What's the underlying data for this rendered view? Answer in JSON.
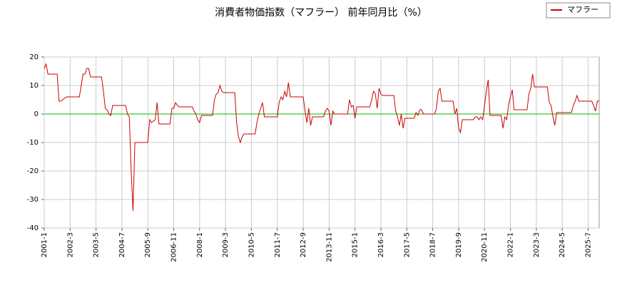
{
  "chart_data": {
    "type": "line",
    "title": "消費者物価指数（マフラー） 前年同月比（%）",
    "categories": [
      "2001-1",
      null,
      null,
      null,
      null,
      null,
      null,
      null,
      null,
      null,
      null,
      null,
      null,
      null,
      "2002-3",
      null,
      null,
      null,
      null,
      null,
      null,
      null,
      null,
      null,
      null,
      null,
      null,
      null,
      "2003-5",
      null,
      null,
      null,
      null,
      null,
      null,
      null,
      null,
      null,
      null,
      null,
      null,
      null,
      "2004-7",
      null,
      null,
      null,
      null,
      null,
      null,
      null,
      null,
      null,
      null,
      null,
      null,
      null,
      "2005-9",
      null,
      null,
      null,
      null,
      null,
      null,
      null,
      null,
      null,
      null,
      null,
      null,
      null,
      "2006-11",
      null,
      null,
      null,
      null,
      null,
      null,
      null,
      null,
      null,
      null,
      null,
      null,
      null,
      "2008-1",
      null,
      null,
      null,
      null,
      null,
      null,
      null,
      null,
      null,
      null,
      null,
      null,
      null,
      "2009-3",
      null,
      null,
      null,
      null,
      null,
      null,
      null,
      null,
      null,
      null,
      null,
      null,
      null,
      "2010-5",
      null,
      null,
      null,
      null,
      null,
      null,
      null,
      null,
      null,
      null,
      null,
      null,
      null,
      "2011-7",
      null,
      null,
      null,
      null,
      null,
      null,
      null,
      null,
      null,
      null,
      null,
      null,
      null,
      "2012-9",
      null,
      null,
      null,
      null,
      null,
      null,
      null,
      null,
      null,
      null,
      null,
      null,
      null,
      "2013-11",
      null,
      null,
      null,
      null,
      null,
      null,
      null,
      null,
      null,
      null,
      null,
      null,
      null,
      "2015-1",
      null,
      null,
      null,
      null,
      null,
      null,
      null,
      null,
      null,
      null,
      null,
      null,
      null,
      "2016-3",
      null,
      null,
      null,
      null,
      null,
      null,
      null,
      null,
      null,
      null,
      null,
      null,
      null,
      "2017-5",
      null,
      null,
      null,
      null,
      null,
      null,
      null,
      null,
      null,
      null,
      null,
      null,
      null,
      "2018-7",
      null,
      null,
      null,
      null,
      null,
      null,
      null,
      null,
      null,
      null,
      null,
      null,
      null,
      "2019-9",
      null,
      null,
      null,
      null,
      null,
      null,
      null,
      null,
      null,
      null,
      null,
      null,
      null,
      "2020-11",
      null,
      null,
      null,
      null,
      null,
      null,
      null,
      null,
      null,
      null,
      null,
      null,
      null,
      "2022-1",
      null,
      null,
      null,
      null,
      null,
      null,
      null,
      null,
      null,
      null,
      null,
      null,
      null,
      "2023-3",
      null,
      null,
      null,
      null,
      null,
      null,
      null,
      null,
      null,
      null,
      null,
      null,
      null,
      "2024-5",
      null,
      null,
      null,
      null,
      null,
      null,
      null,
      null,
      null,
      null,
      null,
      null,
      null,
      "2025-7",
      null,
      null,
      null,
      null,
      null,
      null
    ],
    "series": [
      {
        "name": "マフラー",
        "color": "#cc0000",
        "values": [
          16,
          17.5,
          14,
          14,
          14,
          14,
          14,
          14,
          4.5,
          4.5,
          5,
          5.5,
          6,
          6,
          6,
          6,
          6,
          6,
          6,
          6,
          10,
          14,
          14,
          16,
          16,
          13,
          13,
          13,
          13,
          13,
          13,
          13,
          8,
          2,
          1.5,
          0,
          -0.5,
          3,
          3,
          3,
          3,
          3,
          3,
          3,
          3,
          0,
          -1,
          -20,
          -34,
          -10,
          -10,
          -10,
          -10,
          -10,
          -10,
          -10,
          -10,
          -2,
          -3,
          -2.5,
          -2,
          4,
          -3.5,
          -3.5,
          -3.5,
          -3.5,
          -3.5,
          -3.5,
          -3.5,
          2,
          2,
          4,
          3,
          2.5,
          2.5,
          2.5,
          2.5,
          2.5,
          2.5,
          2.5,
          2.5,
          1,
          0,
          -2,
          -3,
          -0.5,
          -0.5,
          -0.5,
          -0.5,
          -0.5,
          -0.5,
          -0.5,
          5,
          7,
          7.5,
          10,
          8,
          7.5,
          7.5,
          7.5,
          7.5,
          7.5,
          7.5,
          7.5,
          -3,
          -8,
          -10,
          -8,
          -7,
          -7,
          -7,
          -7,
          -7,
          -7,
          -7,
          -3,
          0,
          2,
          4,
          -1,
          -1,
          -1,
          -1,
          -1,
          -1,
          -1,
          -1,
          4,
          6,
          5,
          8,
          6,
          11,
          6,
          6,
          6,
          6,
          6,
          6,
          6,
          6,
          1,
          -3,
          2,
          -4,
          -1,
          -1,
          -1,
          -1,
          -1,
          -1,
          -1,
          1,
          2,
          1,
          -4,
          1,
          0,
          0,
          0,
          0,
          0,
          0,
          0,
          0,
          5,
          2.5,
          3,
          -1.5,
          2.5,
          2.5,
          2.5,
          2.5,
          2.5,
          2.5,
          2.5,
          2.5,
          5,
          8,
          7,
          2,
          9,
          7,
          6.5,
          6.5,
          6.5,
          6.5,
          6.5,
          6.5,
          6.5,
          1,
          -1,
          -4,
          0,
          -5,
          -1.5,
          -1.5,
          -1.5,
          -1.5,
          -1.5,
          -1.5,
          0.5,
          -0.5,
          1.5,
          1.5,
          0,
          0,
          0,
          0,
          0,
          0,
          0,
          2,
          8,
          9,
          4.5,
          4.5,
          4.5,
          4.5,
          4.5,
          4.5,
          4.5,
          0,
          2,
          -5,
          -6.5,
          -2,
          -2,
          -2,
          -2,
          -2,
          -2,
          -2,
          -1,
          -1,
          -2,
          -1,
          -2,
          3,
          8,
          12,
          -0.5,
          -0.5,
          -0.5,
          -0.5,
          -0.5,
          -0.5,
          -0.5,
          -5,
          -1,
          -2,
          3,
          6,
          8.5,
          1.5,
          1.5,
          1.5,
          1.5,
          1.5,
          1.5,
          1.5,
          1.5,
          7,
          9,
          14,
          9.5,
          9.5,
          9.5,
          9.5,
          9.5,
          9.5,
          9.5,
          9.5,
          4,
          3,
          -1,
          -4,
          0.5,
          0.5,
          0.5,
          0.5,
          0.5,
          0.5,
          0.5,
          0.5,
          0.5,
          3,
          4.5,
          6.5,
          4.5,
          4.5,
          4.5,
          4.5,
          4.5,
          4.5,
          4.5,
          4.5,
          3,
          1,
          4.5,
          4.5
        ]
      }
    ],
    "ylim": [
      -40,
      20
    ],
    "yticks": [
      -40,
      -30,
      -20,
      -10,
      0,
      10,
      20
    ],
    "reference_line": {
      "value": 0,
      "color": "#00bb00"
    },
    "grid": true,
    "legend": "top-right"
  }
}
